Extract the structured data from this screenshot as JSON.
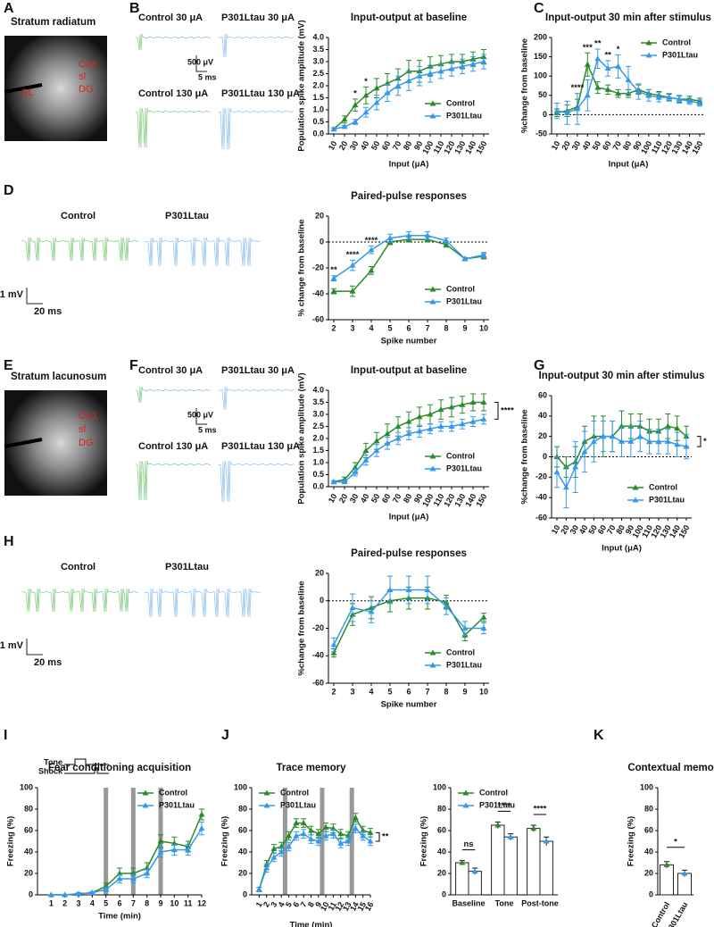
{
  "panel_letters": [
    "A",
    "B",
    "C",
    "D",
    "E",
    "F",
    "G",
    "H",
    "I",
    "J",
    "K"
  ],
  "images": [
    {
      "title": "Stratum radiatum",
      "labels": [
        "CA1",
        "sl",
        "DG",
        "SL"
      ]
    },
    {
      "title": "Stratum lacunosum",
      "labels": [
        "CA1",
        "sl",
        "DG"
      ]
    }
  ],
  "traces": [
    {
      "labels": [
        "Control 30 μA",
        "P301Ltau 30 μA",
        "Control 130 μA",
        "P301Ltau 130 μA"
      ],
      "scale": [
        "500 μV",
        "5 ms"
      ]
    },
    {
      "labels": [
        "Control",
        "P301Ltau"
      ],
      "scale": [
        "1 mV",
        "20 ms"
      ]
    },
    {
      "labels": [
        "Control 30 μA",
        "P301Ltau 30 μA",
        "Control 130 μA",
        "P301Ltau 130 μA"
      ],
      "scale": [
        "500 μV",
        "5 ms"
      ]
    },
    {
      "labels": [
        "Control",
        "P301Ltau"
      ],
      "scale": [
        "1 mV",
        "20 ms"
      ]
    }
  ],
  "chart_data": [
    {
      "type": "line",
      "title": "Input-output at baseline",
      "xlabel": "Input (μA)",
      "ylabel": "Population spike amplitude (mV)",
      "categories": [
        "10",
        "20",
        "30",
        "40",
        "50",
        "60",
        "70",
        "80",
        "90",
        "100",
        "110",
        "120",
        "130",
        "140",
        "150"
      ],
      "ylim": [
        0,
        4
      ],
      "yticks": [
        {
          "value": 0,
          "label": "0.0"
        },
        0.5,
        {
          "value": 1,
          "label": "1.0"
        },
        1.5,
        {
          "value": 2,
          "label": "2.0"
        },
        2.5,
        {
          "value": 3,
          "label": "3.0"
        },
        3.5,
        {
          "value": 4,
          "label": "4.0"
        }
      ],
      "legend": "lower right",
      "series": [
        {
          "name": "Control",
          "color": "#2a8a2a",
          "values": [
            0.2,
            0.6,
            1.2,
            1.6,
            1.9,
            2.1,
            2.3,
            2.6,
            2.6,
            2.8,
            2.9,
            3.0,
            3.0,
            3.1,
            3.2
          ],
          "errors": [
            0.05,
            0.15,
            0.25,
            0.35,
            0.4,
            0.4,
            0.4,
            0.45,
            0.45,
            0.4,
            0.35,
            0.3,
            0.3,
            0.3,
            0.3
          ]
        },
        {
          "name": "P301Ltau",
          "color": "#3399ee",
          "values": [
            0.2,
            0.3,
            0.5,
            0.9,
            1.3,
            1.7,
            2.0,
            2.2,
            2.4,
            2.5,
            2.6,
            2.7,
            2.8,
            2.9,
            3.0
          ],
          "errors": [
            0.05,
            0.05,
            0.1,
            0.2,
            0.3,
            0.35,
            0.4,
            0.4,
            0.4,
            0.35,
            0.3,
            0.3,
            0.3,
            0.3,
            0.3
          ]
        }
      ],
      "annotations": [
        {
          "text": "*",
          "at": "30"
        },
        {
          "text": "*",
          "at": "40"
        }
      ]
    },
    {
      "type": "line",
      "title": "Input-output 30 min after stimulus",
      "xlabel": "Input (μA)",
      "ylabel": "%change from baseline",
      "categories": [
        "10",
        "20",
        "30",
        "40",
        "50",
        "60",
        "70",
        "80",
        "90",
        "100",
        "110",
        "120",
        "130",
        "140",
        "150"
      ],
      "ylim": [
        -50,
        200
      ],
      "yticks": [
        -50,
        0,
        50,
        100,
        150,
        200
      ],
      "zero_line": true,
      "legend": "upper right",
      "series": [
        {
          "name": "Control",
          "color": "#2a8a2a",
          "values": [
            5,
            10,
            20,
            130,
            70,
            65,
            55,
            55,
            65,
            55,
            50,
            45,
            40,
            40,
            35
          ],
          "errors": [
            10,
            15,
            20,
            30,
            15,
            12,
            10,
            10,
            12,
            10,
            10,
            8,
            8,
            8,
            8
          ]
        },
        {
          "name": "P301Ltau",
          "color": "#3399ee",
          "values": [
            10,
            5,
            15,
            50,
            145,
            120,
            125,
            90,
            60,
            50,
            45,
            45,
            40,
            35,
            30
          ],
          "errors": [
            20,
            30,
            40,
            40,
            25,
            20,
            30,
            35,
            20,
            15,
            12,
            10,
            10,
            8,
            8
          ]
        }
      ],
      "annotations": [
        {
          "text": "****",
          "at": "30"
        },
        {
          "text": "***",
          "at": "40"
        },
        {
          "text": "**",
          "at": "50"
        },
        {
          "text": "**",
          "at": "60"
        },
        {
          "text": "*",
          "at": "70"
        }
      ]
    },
    {
      "type": "line",
      "title": "Paired-pulse responses",
      "xlabel": "Spike number",
      "ylabel": "% change from baseline",
      "categories": [
        "2",
        "3",
        "4",
        "5",
        "6",
        "7",
        "8",
        "9",
        "10"
      ],
      "ylim": [
        -60,
        20
      ],
      "yticks": [
        -60,
        -40,
        -20,
        0,
        20
      ],
      "zero_line": true,
      "legend": "lower right",
      "series": [
        {
          "name": "Control",
          "color": "#2a8a2a",
          "values": [
            -38,
            -38,
            -22,
            0,
            2,
            2,
            -2,
            -13,
            -11
          ],
          "errors": [
            2,
            4,
            3,
            2,
            2,
            2,
            2,
            1,
            2
          ]
        },
        {
          "name": "P301Ltau",
          "color": "#3399ee",
          "values": [
            -28,
            -18,
            -6,
            3,
            5,
            5,
            1,
            -13,
            -10
          ],
          "errors": [
            2,
            4,
            3,
            3,
            3,
            3,
            2,
            1,
            2
          ]
        }
      ],
      "annotations": [
        {
          "text": "**",
          "at": "2"
        },
        {
          "text": "****",
          "at": "3"
        },
        {
          "text": "****",
          "at": "4"
        }
      ]
    },
    {
      "type": "line",
      "title": "Input-output at baseline",
      "xlabel": "Input (μA)",
      "ylabel": "Population spike amplitude (mV)",
      "categories": [
        "10",
        "20",
        "30",
        "40",
        "50",
        "60",
        "70",
        "80",
        "90",
        "100",
        "110",
        "120",
        "130",
        "140",
        "150"
      ],
      "ylim": [
        0,
        4
      ],
      "yticks": [
        {
          "value": 0,
          "label": "0.0"
        },
        0.5,
        {
          "value": 1,
          "label": "1.0"
        },
        1.5,
        {
          "value": 2,
          "label": "2.0"
        },
        2.5,
        {
          "value": 3,
          "label": "3.0"
        },
        3.5,
        {
          "value": 4,
          "label": "4.0"
        }
      ],
      "legend": "lower right",
      "bracket": "****",
      "series": [
        {
          "name": "Control",
          "color": "#2a8a2a",
          "values": [
            0.2,
            0.3,
            0.8,
            1.5,
            1.9,
            2.2,
            2.5,
            2.7,
            2.9,
            3.0,
            3.2,
            3.3,
            3.4,
            3.5,
            3.5
          ],
          "errors": [
            0.05,
            0.1,
            0.2,
            0.3,
            0.35,
            0.4,
            0.4,
            0.4,
            0.4,
            0.4,
            0.4,
            0.4,
            0.35,
            0.35,
            0.35
          ]
        },
        {
          "name": "P301Ltau",
          "color": "#3399ee",
          "values": [
            0.2,
            0.2,
            0.6,
            1.1,
            1.5,
            1.8,
            2.0,
            2.2,
            2.3,
            2.4,
            2.5,
            2.5,
            2.6,
            2.7,
            2.8
          ],
          "errors": [
            0.05,
            0.05,
            0.15,
            0.2,
            0.25,
            0.25,
            0.25,
            0.25,
            0.25,
            0.2,
            0.2,
            0.2,
            0.2,
            0.2,
            0.2
          ]
        }
      ]
    },
    {
      "type": "line",
      "title": "Input-output 30 min after stimulus",
      "xlabel": "Input (μA)",
      "ylabel": "%change from baseline",
      "categories": [
        "10",
        "20",
        "30",
        "40",
        "50",
        "60",
        "70",
        "80",
        "90",
        "100",
        "110",
        "120",
        "130",
        "140",
        "150"
      ],
      "ylim": [
        -60,
        60
      ],
      "yticks": [
        -60,
        -40,
        -20,
        0,
        20,
        40,
        60
      ],
      "zero_line": true,
      "legend": "lower right",
      "bracket": "*",
      "series": [
        {
          "name": "Control",
          "color": "#2a8a2a",
          "values": [
            0,
            -10,
            -5,
            15,
            20,
            20,
            20,
            30,
            30,
            30,
            25,
            25,
            30,
            28,
            20
          ],
          "errors": [
            10,
            10,
            15,
            15,
            20,
            20,
            15,
            15,
            12,
            12,
            12,
            12,
            12,
            12,
            10
          ]
        },
        {
          "name": "P301Ltau",
          "color": "#3399ee",
          "values": [
            -15,
            -30,
            -10,
            5,
            15,
            20,
            20,
            15,
            15,
            20,
            15,
            15,
            15,
            12,
            10
          ],
          "errors": [
            15,
            20,
            25,
            20,
            20,
            15,
            15,
            15,
            15,
            15,
            12,
            12,
            12,
            12,
            12
          ]
        }
      ]
    },
    {
      "type": "line",
      "title": "Paired-pulse responses",
      "xlabel": "Spike number",
      "ylabel": "%change from baseline",
      "categories": [
        "2",
        "3",
        "4",
        "5",
        "6",
        "7",
        "8",
        "9",
        "10"
      ],
      "ylim": [
        -60,
        20
      ],
      "yticks": [
        -60,
        -40,
        -20,
        0,
        20
      ],
      "zero_line": true,
      "legend": "lower right",
      "series": [
        {
          "name": "Control",
          "color": "#2a8a2a",
          "values": [
            -38,
            -10,
            -5,
            0,
            2,
            2,
            -1,
            -25,
            -12
          ],
          "errors": [
            3,
            8,
            8,
            8,
            8,
            8,
            5,
            4,
            3
          ]
        },
        {
          "name": "P301Ltau",
          "color": "#3399ee",
          "values": [
            -32,
            -5,
            -8,
            8,
            8,
            8,
            -4,
            -20,
            -20
          ],
          "errors": [
            5,
            10,
            8,
            10,
            10,
            10,
            6,
            5,
            4
          ]
        }
      ]
    },
    {
      "type": "line",
      "title": "Fear conditioning acquisition",
      "xlabel": "Time (min)",
      "ylabel": "Freezing (%)",
      "x": [
        1,
        2,
        3,
        4,
        5,
        6,
        7,
        8,
        9,
        10,
        11,
        12
      ],
      "xlim": [
        0,
        12
      ],
      "xticks": [
        1,
        2,
        3,
        4,
        5,
        6,
        7,
        8,
        9,
        10,
        11,
        12
      ],
      "ylim": [
        0,
        100
      ],
      "yticks": [
        0,
        20,
        40,
        60,
        80,
        100
      ],
      "legend": "upper right",
      "tone_periods": [
        5,
        7,
        9
      ],
      "inset_labels": [
        "Tone",
        "Shock"
      ],
      "series": [
        {
          "name": "Control",
          "color": "#2a8a2a",
          "values": [
            0,
            0,
            1,
            2,
            8,
            20,
            20,
            25,
            50,
            48,
            45,
            75
          ],
          "errors": [
            0,
            0,
            1,
            1,
            3,
            5,
            5,
            5,
            6,
            6,
            5,
            5
          ]
        },
        {
          "name": "P301Ltau",
          "color": "#3399ee",
          "values": [
            0,
            0,
            1,
            2,
            5,
            15,
            15,
            20,
            40,
            42,
            42,
            62
          ],
          "errors": [
            0,
            0,
            1,
            1,
            2,
            4,
            4,
            4,
            5,
            5,
            5,
            6
          ]
        }
      ]
    },
    {
      "type": "line",
      "title": "Trace memory",
      "xlabel": "Time (min)",
      "ylabel": "Freezing (%)",
      "x": [
        1,
        2,
        3,
        4,
        5,
        6,
        7,
        8,
        9,
        10,
        11,
        12,
        13,
        14,
        15,
        16
      ],
      "xlim": [
        0,
        16
      ],
      "xticks": [
        1,
        2,
        3,
        4,
        5,
        6,
        7,
        8,
        9,
        10,
        11,
        12,
        13,
        14,
        15,
        16
      ],
      "ylim": [
        0,
        100
      ],
      "yticks": [
        0,
        20,
        40,
        60,
        80,
        100
      ],
      "legend": "upper left",
      "bracket": "**",
      "tone_periods": [
        4.5,
        9.5,
        13.5
      ],
      "series": [
        {
          "name": "Control",
          "color": "#2a8a2a",
          "values": [
            5,
            28,
            43,
            45,
            55,
            67,
            67,
            60,
            57,
            63,
            62,
            57,
            55,
            72,
            60,
            58
          ],
          "errors": [
            2,
            4,
            4,
            4,
            4,
            4,
            4,
            4,
            4,
            4,
            4,
            4,
            4,
            4,
            4,
            4
          ]
        },
        {
          "name": "P301Ltau",
          "color": "#3399ee",
          "values": [
            5,
            25,
            35,
            40,
            45,
            55,
            57,
            52,
            50,
            55,
            57,
            48,
            50,
            62,
            55,
            50
          ],
          "errors": [
            2,
            4,
            4,
            4,
            4,
            4,
            4,
            4,
            4,
            4,
            4,
            4,
            4,
            4,
            4,
            4
          ]
        }
      ]
    },
    {
      "type": "bar",
      "ylabel": "Freezing (%)",
      "categories": [
        "Baseline",
        "Tone",
        "Post-tone"
      ],
      "ylim": [
        0,
        100
      ],
      "yticks": [
        0,
        20,
        40,
        60,
        80,
        100
      ],
      "legend": "upper left",
      "significance": [
        "ns",
        "****",
        "****"
      ],
      "series": [
        {
          "name": "Control",
          "color": "#2a8a2a",
          "values": [
            30,
            65,
            62
          ],
          "errors": [
            2,
            3,
            3
          ]
        },
        {
          "name": "P301Ltau",
          "color": "#3399ee",
          "values": [
            22,
            54,
            50
          ],
          "errors": [
            3,
            3,
            4
          ]
        }
      ]
    },
    {
      "type": "bar",
      "title": "Contextual memory",
      "ylabel": "Freezing (%)",
      "categories": [
        "Control",
        "P301Ltau"
      ],
      "values": [
        28,
        20
      ],
      "errors": [
        3,
        3
      ],
      "colors": [
        "#2a8a2a",
        "#3399ee"
      ],
      "ylim": [
        0,
        100
      ],
      "yticks": [
        0,
        20,
        40,
        60,
        80,
        100
      ],
      "significance": "*"
    }
  ]
}
